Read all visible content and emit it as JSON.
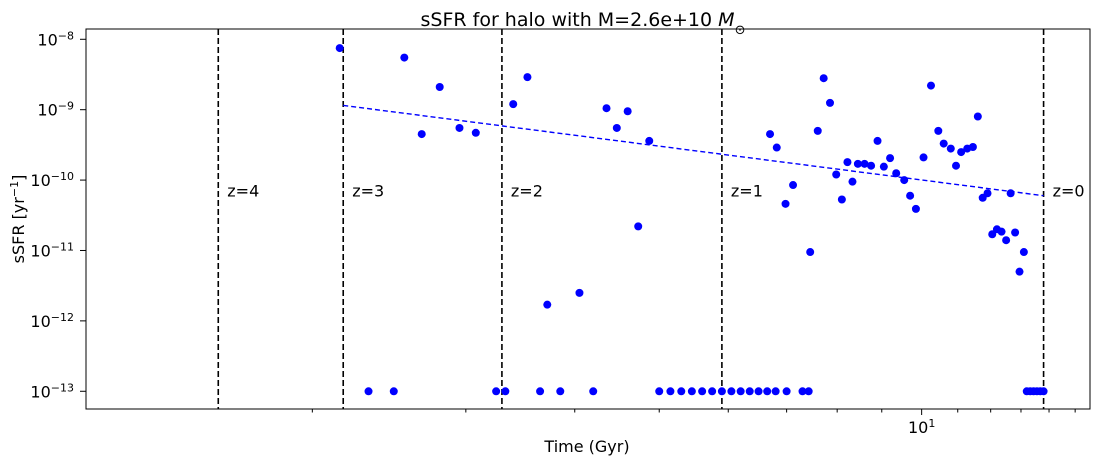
{
  "chart_data": {
    "type": "scatter",
    "title_main": "sSFR for halo with M=2.6e+10 ",
    "title_math": "M",
    "title_sub": "⊙",
    "xlabel": "Time (Gyr)",
    "ylabel_main": "sSFR  [yr",
    "ylabel_exp": "−1",
    "ylabel_close": "]",
    "x_scale": "log",
    "y_scale": "log",
    "xlim": [
      1.1,
      15.6
    ],
    "ylim": [
      5.6e-14,
      1.4e-08
    ],
    "x_ticks": [
      {
        "value": 10,
        "base": "10",
        "exp": "1"
      }
    ],
    "y_ticks": [
      {
        "value": 1e-13,
        "base": "10",
        "exp": "−13"
      },
      {
        "value": 1e-12,
        "base": "10",
        "exp": "−12"
      },
      {
        "value": 1e-11,
        "base": "10",
        "exp": "−11"
      },
      {
        "value": 1e-10,
        "base": "10",
        "exp": "−10"
      },
      {
        "value": 1e-09,
        "base": "10",
        "exp": "−9"
      },
      {
        "value": 1e-08,
        "base": "10",
        "exp": "−8"
      }
    ],
    "redshift_lines": [
      {
        "x": 13.8,
        "label": "z=0"
      },
      {
        "x": 5.9,
        "label": "z=1"
      },
      {
        "x": 3.3,
        "label": "z=2"
      },
      {
        "x": 2.17,
        "label": "z=3"
      },
      {
        "x": 1.56,
        "label": "z=4"
      }
    ],
    "points_color": "#0000ff",
    "points": [
      [
        2.15,
        7.5e-09
      ],
      [
        2.55,
        5.5e-09
      ],
      [
        2.67,
        4.5e-10
      ],
      [
        2.8,
        2.1e-09
      ],
      [
        2.95,
        5.5e-10
      ],
      [
        3.08,
        4.7e-10
      ],
      [
        3.4,
        1.2e-09
      ],
      [
        3.53,
        2.9e-09
      ],
      [
        3.72,
        1.7e-12
      ],
      [
        4.05,
        2.5e-12
      ],
      [
        4.35,
        1.05e-09
      ],
      [
        4.47,
        5.5e-10
      ],
      [
        4.6,
        9.5e-10
      ],
      [
        4.73,
        2.2e-11
      ],
      [
        4.87,
        3.6e-10
      ],
      [
        6.7,
        4.5e-10
      ],
      [
        6.82,
        2.9e-10
      ],
      [
        6.98,
        4.6e-11
      ],
      [
        7.12,
        8.5e-11
      ],
      [
        7.45,
        9.5e-12
      ],
      [
        7.6,
        5e-10
      ],
      [
        7.72,
        2.8e-09
      ],
      [
        7.85,
        1.25e-09
      ],
      [
        7.98,
        1.2e-10
      ],
      [
        8.1,
        5.3e-11
      ],
      [
        8.22,
        1.8e-10
      ],
      [
        8.33,
        9.5e-11
      ],
      [
        8.45,
        1.7e-10
      ],
      [
        8.6,
        1.7e-10
      ],
      [
        8.75,
        1.6e-10
      ],
      [
        8.9,
        3.6e-10
      ],
      [
        9.05,
        1.55e-10
      ],
      [
        9.2,
        2.05e-10
      ],
      [
        9.35,
        1.25e-10
      ],
      [
        9.55,
        1e-10
      ],
      [
        9.7,
        6e-11
      ],
      [
        9.85,
        3.9e-11
      ],
      [
        10.05,
        2.1e-10
      ],
      [
        10.25,
        2.2e-09
      ],
      [
        10.45,
        5e-10
      ],
      [
        10.6,
        3.3e-10
      ],
      [
        10.8,
        2.8e-10
      ],
      [
        10.95,
        1.6e-10
      ],
      [
        11.1,
        2.5e-10
      ],
      [
        11.28,
        2.8e-10
      ],
      [
        11.45,
        2.95e-10
      ],
      [
        11.6,
        8e-10
      ],
      [
        11.75,
        5.6e-11
      ],
      [
        11.9,
        6.5e-11
      ],
      [
        12.05,
        1.7e-11
      ],
      [
        12.2,
        2e-11
      ],
      [
        12.35,
        1.85e-11
      ],
      [
        12.5,
        1.4e-11
      ],
      [
        12.65,
        6.5e-11
      ],
      [
        12.8,
        1.8e-11
      ],
      [
        12.95,
        5e-12
      ],
      [
        13.1,
        9.5e-12
      ],
      [
        2.32,
        1e-13
      ],
      [
        2.48,
        1e-13
      ],
      [
        3.25,
        1e-13
      ],
      [
        3.33,
        1e-13
      ],
      [
        3.65,
        1e-13
      ],
      [
        3.85,
        1e-13
      ],
      [
        4.2,
        1e-13
      ],
      [
        5.0,
        1e-13
      ],
      [
        5.15,
        1e-13
      ],
      [
        5.3,
        1e-13
      ],
      [
        5.45,
        1e-13
      ],
      [
        5.6,
        1e-13
      ],
      [
        5.75,
        1e-13
      ],
      [
        5.9,
        1e-13
      ],
      [
        6.05,
        1e-13
      ],
      [
        6.2,
        1e-13
      ],
      [
        6.35,
        1e-13
      ],
      [
        6.5,
        1e-13
      ],
      [
        6.65,
        1e-13
      ],
      [
        6.8,
        1e-13
      ],
      [
        7.0,
        1e-13
      ],
      [
        7.3,
        1e-13
      ],
      [
        7.42,
        1e-13
      ],
      [
        13.2,
        1e-13
      ],
      [
        13.32,
        1e-13
      ],
      [
        13.44,
        1e-13
      ],
      [
        13.56,
        1e-13
      ],
      [
        13.68,
        1e-13
      ],
      [
        13.8,
        1e-13
      ]
    ],
    "trend_line": {
      "color": "#0000ff",
      "style": "dashed",
      "from": [
        2.17,
        1.15e-09
      ],
      "to": [
        13.8,
        6e-11
      ]
    }
  }
}
